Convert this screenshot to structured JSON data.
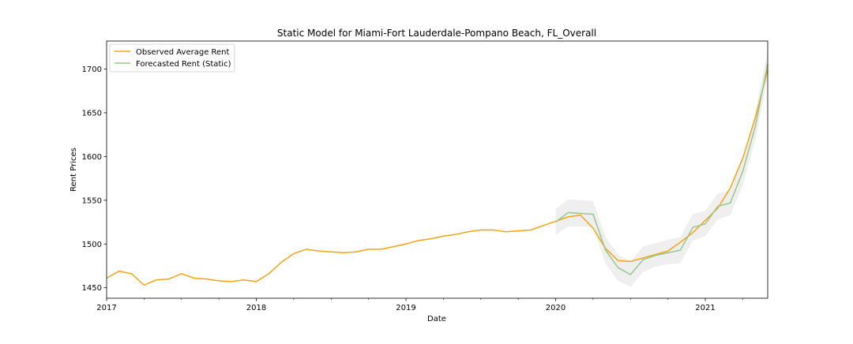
{
  "chart_data": {
    "type": "line",
    "title": "Static Model for Miami-Fort Lauderdale-Pompano Beach, FL_Overall",
    "xlabel": "Date",
    "ylabel": "Rent Prices",
    "xlim": [
      "2017-01",
      "2021-06"
    ],
    "ylim": [
      1438,
      1732
    ],
    "x_ticks": [
      {
        "value": "2017-01",
        "label": "2017"
      },
      {
        "value": "2018-01",
        "label": "2018"
      },
      {
        "value": "2019-01",
        "label": "2019"
      },
      {
        "value": "2020-01",
        "label": "2020"
      },
      {
        "value": "2021-01",
        "label": "2021"
      }
    ],
    "y_ticks": [
      1450,
      1500,
      1550,
      1600,
      1650,
      1700
    ],
    "grid": false,
    "legend_position": "top-left",
    "series": [
      {
        "name": "Observed Average Rent",
        "color": "#f5a316",
        "x": [
          "2017-01",
          "2017-02",
          "2017-03",
          "2017-04",
          "2017-05",
          "2017-06",
          "2017-07",
          "2017-08",
          "2017-09",
          "2017-10",
          "2017-11",
          "2017-12",
          "2018-01",
          "2018-02",
          "2018-03",
          "2018-04",
          "2018-05",
          "2018-06",
          "2018-07",
          "2018-08",
          "2018-09",
          "2018-10",
          "2018-11",
          "2018-12",
          "2019-01",
          "2019-02",
          "2019-03",
          "2019-04",
          "2019-05",
          "2019-06",
          "2019-07",
          "2019-08",
          "2019-09",
          "2019-10",
          "2019-11",
          "2019-12",
          "2020-01",
          "2020-02",
          "2020-03",
          "2020-04",
          "2020-05",
          "2020-06",
          "2020-07",
          "2020-08",
          "2020-09",
          "2020-10",
          "2020-11",
          "2020-12",
          "2021-01",
          "2021-02",
          "2021-03",
          "2021-04",
          "2021-05",
          "2021-06"
        ],
        "values": [
          1461,
          1469,
          1466,
          1453,
          1459,
          1460,
          1466,
          1461,
          1460,
          1458,
          1457,
          1459,
          1457,
          1466,
          1479,
          1489,
          1494,
          1492,
          1491,
          1490,
          1491,
          1494,
          1494,
          1497,
          1500,
          1504,
          1506,
          1509,
          1511,
          1514,
          1516,
          1516,
          1514,
          1515,
          1516,
          1521,
          1526,
          1531,
          1533,
          1518,
          1495,
          1481,
          1480,
          1484,
          1488,
          1492,
          1502,
          1513,
          1527,
          1541,
          1564,
          1598,
          1644,
          1699
        ]
      },
      {
        "name": "Forecasted Rent (Static)",
        "color": "#97c68b",
        "x": [
          "2020-01",
          "2020-02",
          "2020-03",
          "2020-04",
          "2020-05",
          "2020-06",
          "2020-07",
          "2020-08",
          "2020-09",
          "2020-10",
          "2020-11",
          "2020-12",
          "2021-01",
          "2021-02",
          "2021-03",
          "2021-04",
          "2021-05",
          "2021-06"
        ],
        "values": [
          1525,
          1536,
          1535,
          1534,
          1493,
          1473,
          1465,
          1482,
          1487,
          1490,
          1493,
          1519,
          1523,
          1543,
          1547,
          1583,
          1634,
          1706
        ],
        "ci_lower": [
          1510,
          1520,
          1520,
          1520,
          1477,
          1458,
          1451,
          1468,
          1474,
          1477,
          1478,
          1504,
          1509,
          1528,
          1533,
          1567,
          1618,
          1690
        ],
        "ci_upper": [
          1540,
          1551,
          1550,
          1549,
          1508,
          1488,
          1480,
          1497,
          1501,
          1505,
          1508,
          1534,
          1538,
          1558,
          1561,
          1599,
          1650,
          1722
        ]
      }
    ]
  }
}
